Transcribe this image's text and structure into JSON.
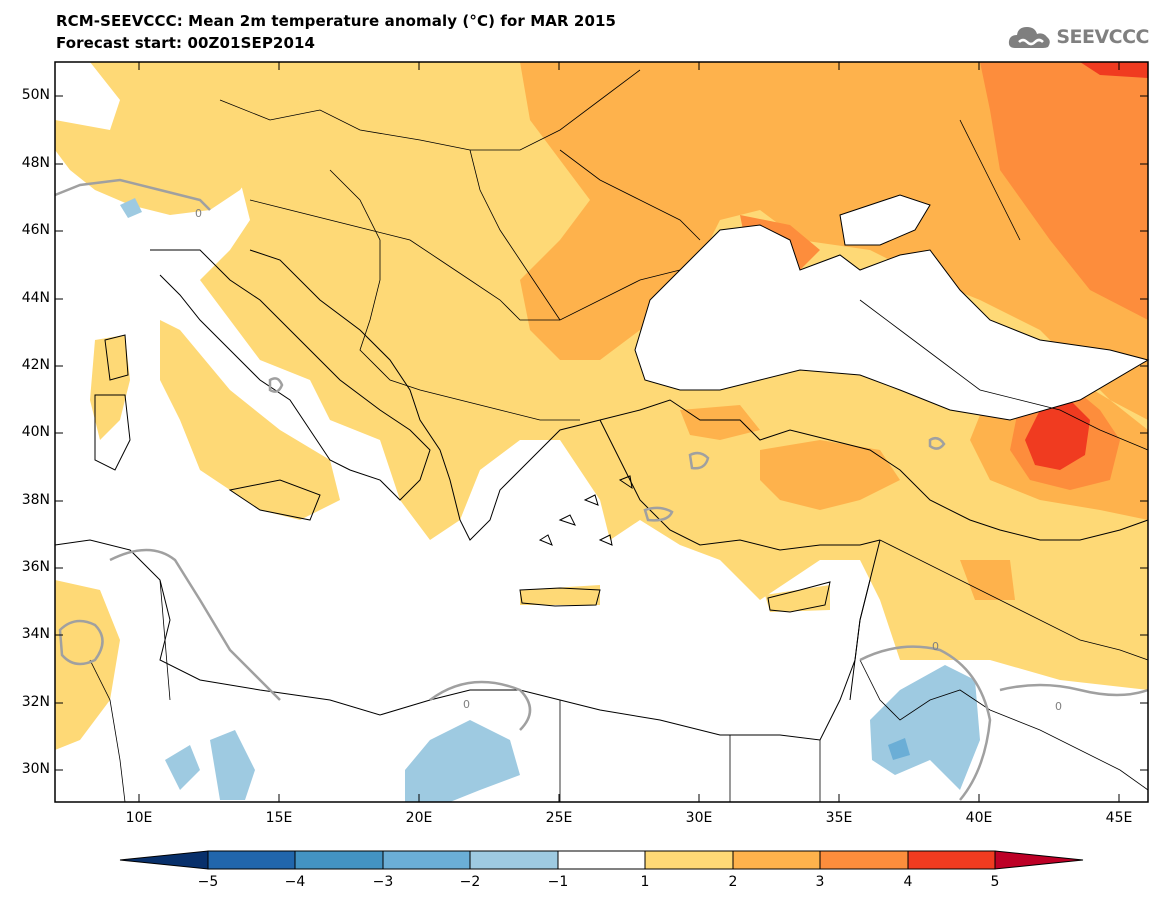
{
  "title_line1": "RCM-SEEVCCC: Mean 2m temperature anomaly (°C) for MAR 2015",
  "title_line2": "Forecast start: 00Z01SEP2014",
  "logo_text": "SEEVCCC",
  "y_axis_labels": [
    "50N",
    "48N",
    "46N",
    "44N",
    "42N",
    "40N",
    "38N",
    "36N",
    "34N",
    "32N",
    "30N"
  ],
  "x_axis_labels": [
    "10E",
    "15E",
    "20E",
    "25E",
    "30E",
    "35E",
    "40E",
    "45E"
  ],
  "colorbar": {
    "labels": [
      "−5",
      "−4",
      "−3",
      "−2",
      "−1",
      "1",
      "2",
      "3",
      "4",
      "5"
    ],
    "colors": [
      "#08306b",
      "#2166ac",
      "#4393c3",
      "#6baed6",
      "#9ecae1",
      "#ffffff",
      "#fed976",
      "#feb24c",
      "#fd8d3c",
      "#f03b20",
      "#bd0026"
    ]
  },
  "contour_label": "0",
  "map_data": {
    "lon_range": [
      7,
      46
    ],
    "lat_range": [
      29,
      51
    ]
  }
}
